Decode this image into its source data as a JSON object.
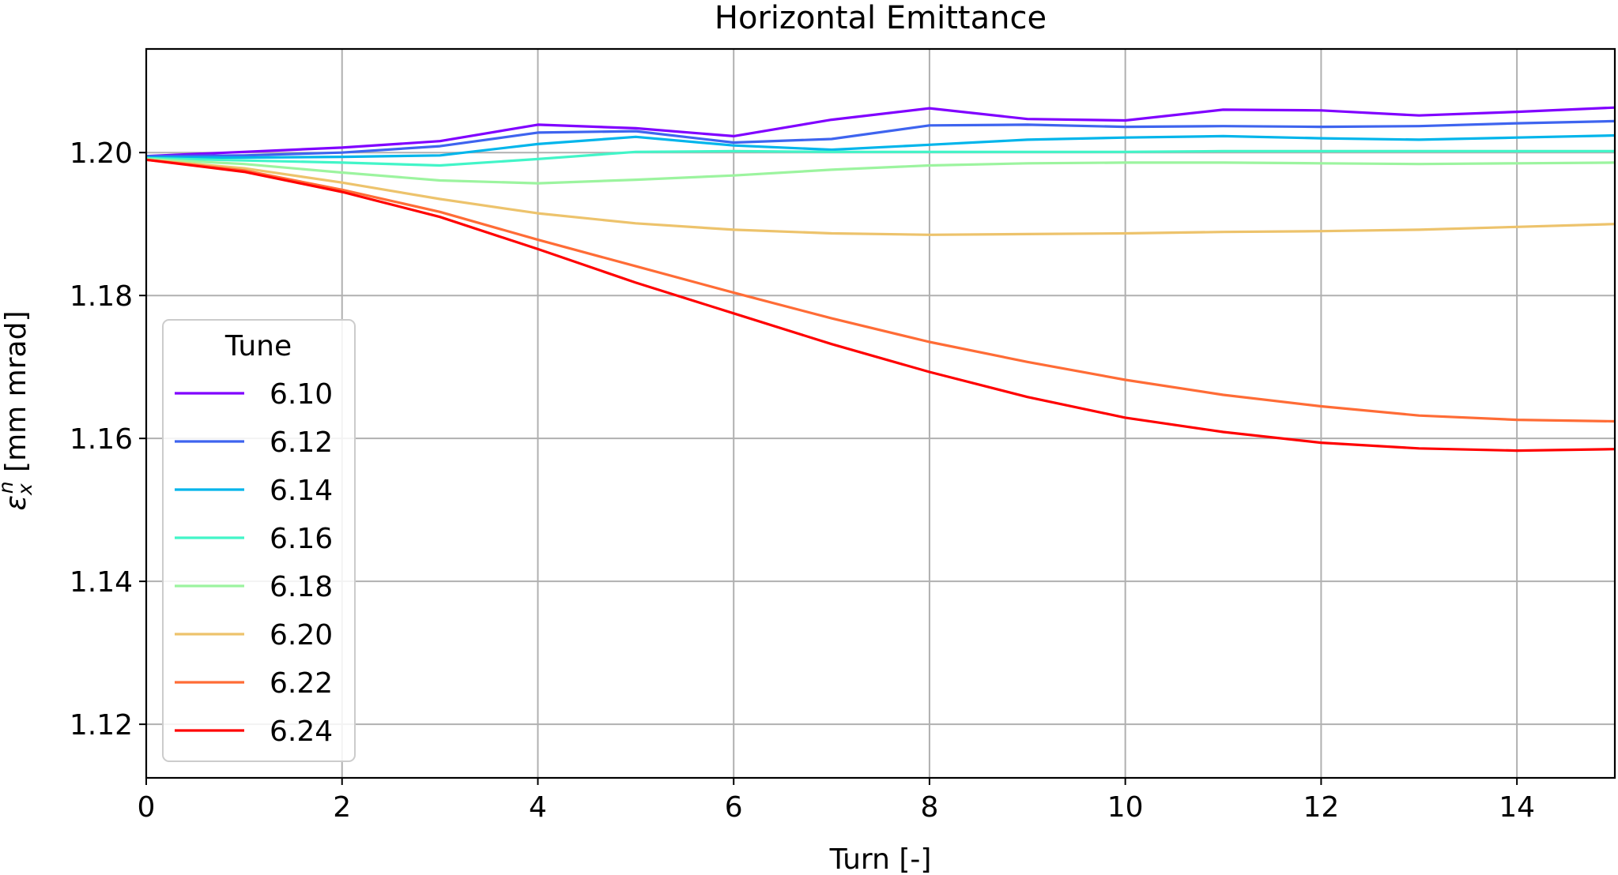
{
  "chart_data": {
    "type": "line",
    "title": "Horizontal Emittance",
    "xlabel": "Turn [-]",
    "ylabel_main": "ε",
    "ylabel_sub": "x",
    "ylabel_sup": "n",
    "ylabel_unit": " [mm mrad]",
    "xlim": [
      0,
      15
    ],
    "ylim": [
      1.1125,
      1.2145
    ],
    "xticks": [
      0,
      2,
      4,
      6,
      8,
      10,
      12,
      14
    ],
    "xtick_labels": [
      "0",
      "2",
      "4",
      "6",
      "8",
      "10",
      "12",
      "14"
    ],
    "yticks": [
      1.12,
      1.14,
      1.16,
      1.18,
      1.2
    ],
    "ytick_labels": [
      "1.12",
      "1.14",
      "1.16",
      "1.18",
      "1.20"
    ],
    "grid": true,
    "legend": {
      "title": "Tune",
      "placement": "center-left"
    },
    "x": [
      0,
      1,
      2,
      3,
      4,
      5,
      6,
      7,
      8,
      9,
      10,
      11,
      12,
      13,
      14,
      15
    ],
    "series": [
      {
        "name": "6.10",
        "color": "#8000ff",
        "values": [
          1.1995,
          1.2001,
          1.2007,
          1.2016,
          1.2039,
          1.2034,
          1.2023,
          1.2046,
          1.2062,
          1.2047,
          1.2045,
          1.206,
          1.2059,
          1.2052,
          1.2057,
          1.2063
        ]
      },
      {
        "name": "6.12",
        "color": "#3e64ef",
        "values": [
          1.1995,
          1.1996,
          1.2,
          1.2009,
          1.2028,
          1.203,
          1.2014,
          1.2019,
          1.2038,
          1.2039,
          1.2036,
          1.2037,
          1.2036,
          1.2037,
          1.2041,
          1.2044
        ]
      },
      {
        "name": "6.14",
        "color": "#00b5eb",
        "values": [
          1.1993,
          1.1993,
          1.1994,
          1.1996,
          1.2012,
          1.2022,
          1.201,
          1.2004,
          1.2011,
          1.2018,
          1.2021,
          1.2023,
          1.202,
          1.2018,
          1.2021,
          1.2024
        ]
      },
      {
        "name": "6.16",
        "color": "#42f5c8",
        "values": [
          1.1992,
          1.1989,
          1.1986,
          1.1982,
          1.1991,
          1.2001,
          1.2002,
          1.2001,
          1.2001,
          1.2001,
          1.2001,
          1.2002,
          1.2002,
          1.2002,
          1.2002,
          1.2002
        ]
      },
      {
        "name": "6.18",
        "color": "#9cf49f",
        "values": [
          1.1991,
          1.1984,
          1.1972,
          1.1961,
          1.1957,
          1.1962,
          1.1968,
          1.1976,
          1.1982,
          1.1985,
          1.1986,
          1.1986,
          1.1985,
          1.1984,
          1.1985,
          1.1986
        ]
      },
      {
        "name": "6.20",
        "color": "#edc36c",
        "values": [
          1.199,
          1.1978,
          1.1958,
          1.1935,
          1.1915,
          1.1901,
          1.1892,
          1.1887,
          1.1885,
          1.1886,
          1.1887,
          1.1889,
          1.189,
          1.1892,
          1.1896,
          1.19
        ]
      },
      {
        "name": "6.22",
        "color": "#ff6c36",
        "values": [
          1.199,
          1.1975,
          1.1948,
          1.1917,
          1.1878,
          1.1841,
          1.1804,
          1.1768,
          1.1735,
          1.1707,
          1.1682,
          1.1661,
          1.1645,
          1.1632,
          1.1626,
          1.1624
        ]
      },
      {
        "name": "6.24",
        "color": "#ff0000",
        "values": [
          1.199,
          1.1973,
          1.1945,
          1.191,
          1.1865,
          1.1818,
          1.1775,
          1.1732,
          1.1693,
          1.1658,
          1.1629,
          1.1609,
          1.1594,
          1.1586,
          1.1583,
          1.1585
        ]
      }
    ]
  }
}
